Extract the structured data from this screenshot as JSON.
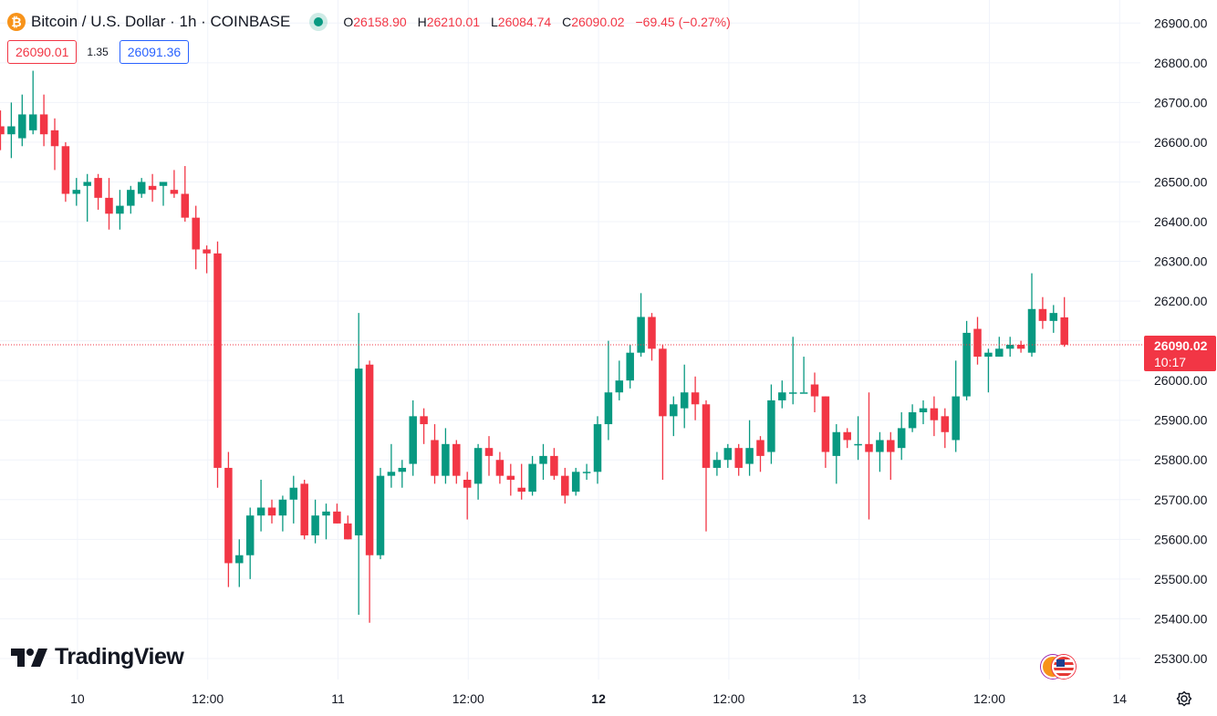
{
  "header": {
    "symbol_title": "Bitcoin / U.S. Dollar · 1h · COINBASE",
    "coin_glyph": "₿",
    "open_label": "O",
    "open": "26158.90",
    "high_label": "H",
    "high": "26210.01",
    "low_label": "L",
    "low": "26084.74",
    "close_label": "C",
    "close": "26090.02",
    "change": "−69.45 (−0.27%)"
  },
  "trade": {
    "sell_price": "26090.01",
    "spread": "1.35",
    "buy_price": "26091.36"
  },
  "brand": {
    "name": "TradingView"
  },
  "price_badge": {
    "price": "26090.02",
    "countdown": "10:17"
  },
  "icons": {
    "coin": "bitcoin-icon",
    "settings": "settings-icon",
    "flags": "currency-flags-icon"
  },
  "colors": {
    "up": "#089981",
    "down": "#f23645",
    "grid": "#f0f3fa",
    "text": "#131722"
  },
  "chart_data": {
    "type": "candlestick",
    "interval": "1h",
    "ylim": [
      25250,
      26950
    ],
    "y_ticks": [
      25300,
      25400,
      25500,
      25600,
      25700,
      25800,
      25900,
      26000,
      26100,
      26200,
      26300,
      26400,
      26500,
      26600,
      26700,
      26800,
      26900
    ],
    "x_ticks": [
      {
        "label": "10",
        "index": 6,
        "bold": false
      },
      {
        "label": "12:00",
        "index": 18,
        "bold": false
      },
      {
        "label": "11",
        "index": 30,
        "bold": false
      },
      {
        "label": "12:00",
        "index": 42,
        "bold": false
      },
      {
        "label": "12",
        "index": 54,
        "bold": true
      },
      {
        "label": "12:00",
        "index": 66,
        "bold": false
      },
      {
        "label": "13",
        "index": 78,
        "bold": false
      },
      {
        "label": "12:00",
        "index": 90,
        "bold": false
      },
      {
        "label": "14",
        "index": 102,
        "bold": false
      }
    ],
    "grid": true,
    "last_price_line": 26090.02,
    "candles": [
      [
        26640,
        26680,
        26580,
        26620
      ],
      [
        26620,
        26700,
        26560,
        26640
      ],
      [
        26610,
        26720,
        26590,
        26670
      ],
      [
        26630,
        26780,
        26620,
        26670
      ],
      [
        26670,
        26720,
        26590,
        26620
      ],
      [
        26630,
        26660,
        26530,
        26590
      ],
      [
        26590,
        26600,
        26450,
        26470
      ],
      [
        26470,
        26510,
        26440,
        26480
      ],
      [
        26490,
        26520,
        26400,
        26500
      ],
      [
        26510,
        26520,
        26430,
        26460
      ],
      [
        26460,
        26510,
        26380,
        26420
      ],
      [
        26420,
        26480,
        26380,
        26440
      ],
      [
        26440,
        26490,
        26420,
        26480
      ],
      [
        26470,
        26510,
        26460,
        26500
      ],
      [
        26490,
        26520,
        26450,
        26480
      ],
      [
        26490,
        26500,
        26440,
        26500
      ],
      [
        26480,
        26530,
        26460,
        26470
      ],
      [
        26470,
        26540,
        26400,
        26410
      ],
      [
        26410,
        26440,
        26280,
        26330
      ],
      [
        26330,
        26340,
        26270,
        26320
      ],
      [
        26320,
        26350,
        25730,
        25780
      ],
      [
        25780,
        25820,
        25480,
        25540
      ],
      [
        25540,
        25600,
        25480,
        25560
      ],
      [
        25560,
        25680,
        25500,
        25660
      ],
      [
        25660,
        25750,
        25620,
        25680
      ],
      [
        25680,
        25700,
        25640,
        25660
      ],
      [
        25660,
        25710,
        25620,
        25700
      ],
      [
        25700,
        25760,
        25640,
        25730
      ],
      [
        25740,
        25750,
        25600,
        25610
      ],
      [
        25610,
        25700,
        25590,
        25660
      ],
      [
        25660,
        25690,
        25600,
        25670
      ],
      [
        25670,
        25690,
        25640,
        25640
      ],
      [
        25640,
        25660,
        25600,
        25600
      ],
      [
        25610,
        26170,
        25410,
        26030
      ],
      [
        26040,
        26050,
        25390,
        25560
      ],
      [
        25560,
        25780,
        25550,
        25760
      ],
      [
        25760,
        25840,
        25730,
        25770
      ],
      [
        25770,
        25800,
        25730,
        25780
      ],
      [
        25790,
        25950,
        25760,
        25910
      ],
      [
        25910,
        25930,
        25840,
        25890
      ],
      [
        25850,
        25890,
        25740,
        25760
      ],
      [
        25760,
        25880,
        25740,
        25840
      ],
      [
        25840,
        25850,
        25740,
        25760
      ],
      [
        25750,
        25770,
        25650,
        25730
      ],
      [
        25740,
        25840,
        25700,
        25830
      ],
      [
        25830,
        25860,
        25760,
        25810
      ],
      [
        25800,
        25820,
        25740,
        25760
      ],
      [
        25760,
        25790,
        25710,
        25750
      ],
      [
        25730,
        25790,
        25700,
        25720
      ],
      [
        25720,
        25810,
        25710,
        25790
      ],
      [
        25790,
        25840,
        25750,
        25810
      ],
      [
        25810,
        25830,
        25750,
        25760
      ],
      [
        25760,
        25780,
        25690,
        25710
      ],
      [
        25720,
        25780,
        25710,
        25770
      ],
      [
        25770,
        25790,
        25750,
        25770
      ],
      [
        25770,
        25910,
        25740,
        25890
      ],
      [
        25890,
        26100,
        25850,
        25970
      ],
      [
        25970,
        26050,
        25950,
        26000
      ],
      [
        26000,
        26090,
        25980,
        26070
      ],
      [
        26070,
        26220,
        26060,
        26160
      ],
      [
        26160,
        26170,
        26050,
        26080
      ],
      [
        26080,
        26090,
        25750,
        25910
      ],
      [
        25910,
        25960,
        25860,
        25940
      ],
      [
        25930,
        26040,
        25880,
        25970
      ],
      [
        25970,
        26010,
        25900,
        25940
      ],
      [
        25940,
        25950,
        25620,
        25780
      ],
      [
        25780,
        25820,
        25760,
        25800
      ],
      [
        25800,
        25840,
        25780,
        25830
      ],
      [
        25830,
        25840,
        25760,
        25780
      ],
      [
        25790,
        25900,
        25760,
        25830
      ],
      [
        25850,
        25860,
        25770,
        25810
      ],
      [
        25820,
        25990,
        25790,
        25950
      ],
      [
        25950,
        26000,
        25930,
        25970
      ],
      [
        25970,
        26110,
        25940,
        25970
      ],
      [
        25970,
        26060,
        25970,
        25970
      ],
      [
        25990,
        26020,
        25920,
        25960
      ],
      [
        25960,
        25960,
        25780,
        25820
      ],
      [
        25810,
        25890,
        25740,
        25870
      ],
      [
        25870,
        25880,
        25830,
        25850
      ],
      [
        25840,
        25910,
        25800,
        25840
      ],
      [
        25840,
        25970,
        25650,
        25820
      ],
      [
        25820,
        25870,
        25770,
        25850
      ],
      [
        25850,
        25870,
        25750,
        25820
      ],
      [
        25830,
        25920,
        25800,
        25880
      ],
      [
        25880,
        25940,
        25870,
        25920
      ],
      [
        25920,
        25950,
        25890,
        25930
      ],
      [
        25930,
        25960,
        25860,
        25900
      ],
      [
        25910,
        25930,
        25830,
        25870
      ],
      [
        25850,
        26050,
        25820,
        25960
      ],
      [
        25960,
        26150,
        25950,
        26120
      ],
      [
        26130,
        26160,
        26040,
        26060
      ],
      [
        26060,
        26080,
        25970,
        26070
      ],
      [
        26060,
        26110,
        26060,
        26080
      ],
      [
        26080,
        26110,
        26060,
        26090
      ],
      [
        26090,
        26100,
        26070,
        26080
      ],
      [
        26070,
        26270,
        26060,
        26180
      ],
      [
        26180,
        26210,
        26130,
        26150
      ],
      [
        26150,
        26190,
        26120,
        26170
      ],
      [
        26158.9,
        26210.01,
        26084.74,
        26090.02
      ]
    ]
  }
}
